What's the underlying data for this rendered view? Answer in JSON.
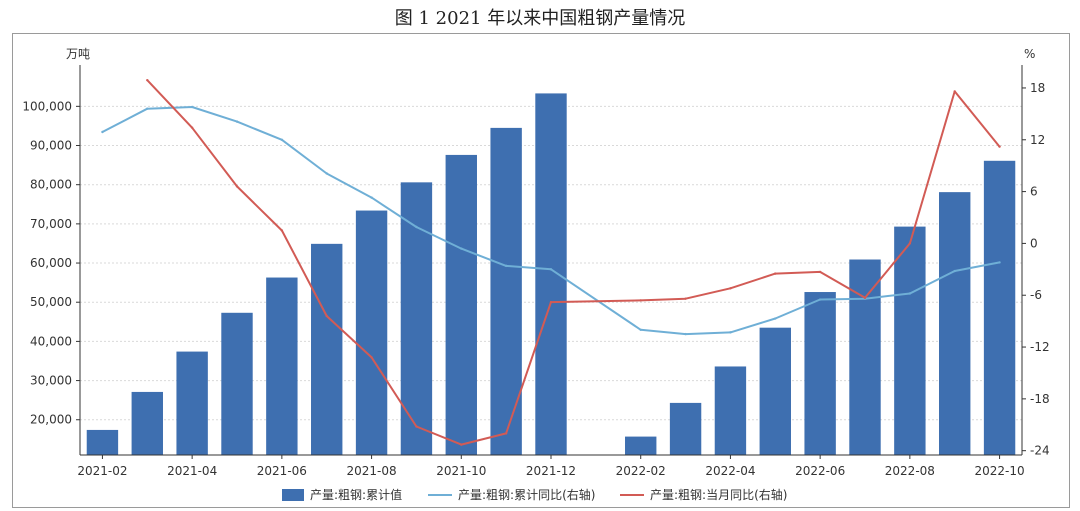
{
  "figure": {
    "title": "图 1    2021 年以来中国粗钢产量情况"
  },
  "colors": {
    "bar": "#3E6FB0",
    "cum_yoy": "#6FAFD6",
    "mon_yoy": "#D25B55",
    "grid": "#d9d9d9",
    "axis": "#333333"
  },
  "chart_data": {
    "type": "bar",
    "left_unit": "万吨",
    "right_unit": "%",
    "categories": [
      "2021-02",
      "2021-03",
      "2021-04",
      "2021-05",
      "2021-06",
      "2021-07",
      "2021-08",
      "2021-09",
      "2021-10",
      "2021-11",
      "2021-12",
      "2022-01",
      "2022-02",
      "2022-03",
      "2022-04",
      "2022-05",
      "2022-06",
      "2022-07",
      "2022-08",
      "2022-09",
      "2022-10"
    ],
    "x_tick_labels": [
      "2021-02",
      "2021-04",
      "2021-06",
      "2021-08",
      "2021-10",
      "2021-12",
      "2022-02",
      "2022-04",
      "2022-06",
      "2022-08",
      "2022-10"
    ],
    "x_tick_indices": [
      0,
      2,
      4,
      6,
      8,
      10,
      12,
      14,
      16,
      18,
      20
    ],
    "ylim_left": [
      11000,
      108000
    ],
    "y_ticks_left": [
      20000,
      30000,
      40000,
      50000,
      60000,
      70000,
      80000,
      90000,
      100000
    ],
    "y_tick_labels_left": [
      "20,000",
      "30,000",
      "40,000",
      "50,000",
      "60,000",
      "70,000",
      "80,000",
      "90,000",
      "100,000"
    ],
    "ylim_right": [
      -24.5,
      19.5
    ],
    "y_ticks_right": [
      18,
      12,
      6,
      0,
      -6,
      -12,
      -18,
      -24
    ],
    "y_tick_labels_right": [
      "18",
      "12",
      "6",
      "0",
      "-6",
      "-12",
      "-18",
      "-24"
    ],
    "grid": true,
    "legend_position": "bottom",
    "series": [
      {
        "name": "产量:粗钢:累计值",
        "axis": "left",
        "kind": "bar",
        "values": [
          17400,
          27100,
          37400,
          47300,
          56300,
          64900,
          73400,
          80600,
          87600,
          94500,
          103300,
          null,
          15700,
          24300,
          33600,
          43500,
          52600,
          60900,
          69300,
          78100,
          86100
        ]
      },
      {
        "name": "产量:粗钢:累计同比(右轴)",
        "axis": "right",
        "kind": "line",
        "values": [
          12.9,
          15.6,
          15.8,
          14.1,
          12.0,
          8.1,
          5.3,
          1.9,
          -0.6,
          -2.6,
          -3.0,
          null,
          -10.0,
          -10.5,
          -10.3,
          -8.7,
          -6.5,
          -6.4,
          -5.8,
          -3.2,
          -2.2
        ]
      },
      {
        "name": "产量:粗钢:当月同比(右轴)",
        "axis": "right",
        "kind": "line",
        "values": [
          null,
          18.9,
          13.4,
          6.6,
          1.5,
          -8.4,
          -13.2,
          -21.2,
          -23.3,
          -22.0,
          -6.8,
          null,
          -6.6,
          -6.4,
          -5.2,
          -3.5,
          -3.3,
          -6.3,
          0.0,
          17.6,
          11.2
        ]
      }
    ]
  }
}
